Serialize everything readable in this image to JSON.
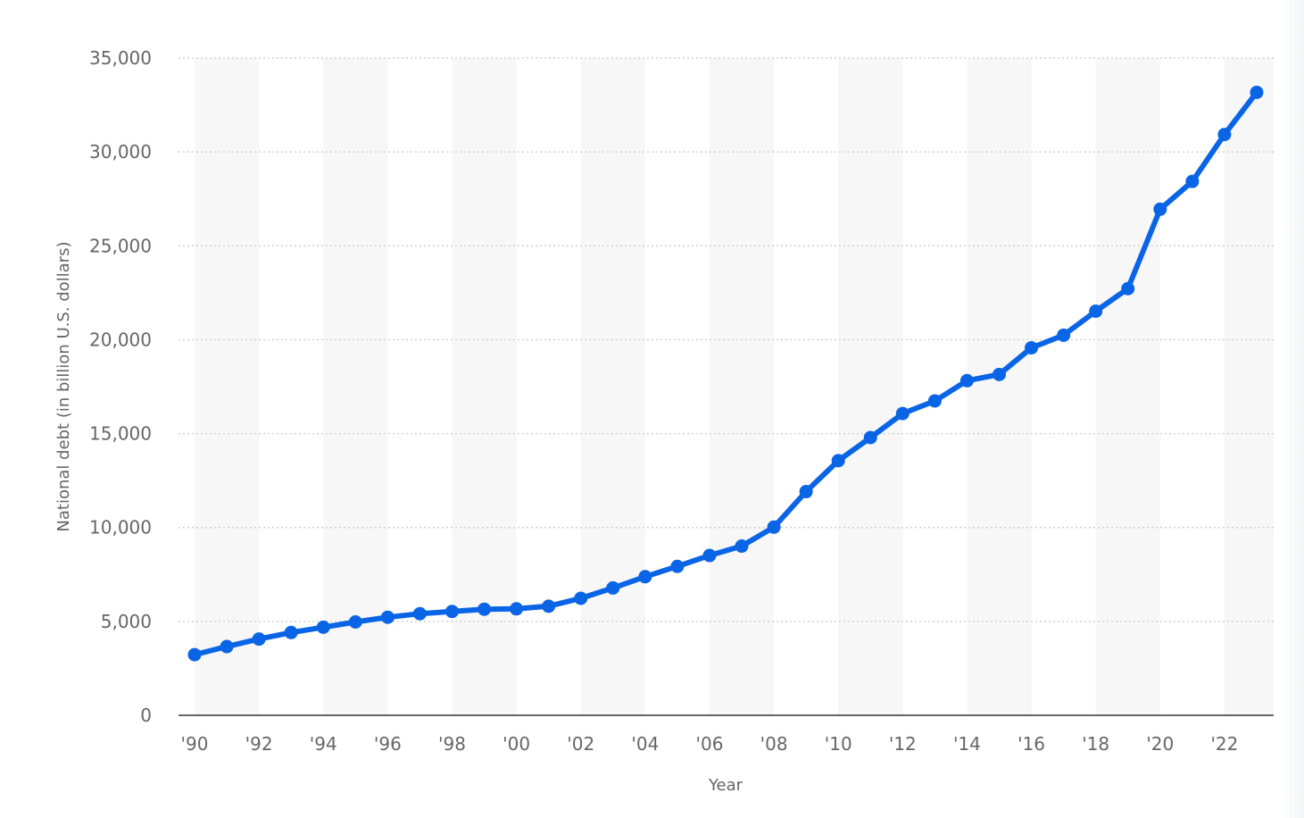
{
  "chart_data": {
    "type": "line",
    "title": "",
    "xlabel": "Year",
    "ylabel": "National debt (in billion U.S. dollars)",
    "x": [
      1990,
      1991,
      1992,
      1993,
      1994,
      1995,
      1996,
      1997,
      1998,
      1999,
      2000,
      2001,
      2002,
      2003,
      2004,
      2005,
      2006,
      2007,
      2008,
      2009,
      2010,
      2011,
      2012,
      2013,
      2014,
      2015,
      2016,
      2017,
      2018,
      2019,
      2020,
      2021,
      2022,
      2023
    ],
    "series": [
      {
        "name": "",
        "color": "#0a64e6",
        "values": [
          3230,
          3660,
          4060,
          4410,
          4690,
          4970,
          5220,
          5410,
          5530,
          5650,
          5670,
          5810,
          6230,
          6780,
          7380,
          7930,
          8510,
          9010,
          10020,
          11910,
          13560,
          14790,
          16070,
          16740,
          17820,
          18150,
          19570,
          20240,
          21520,
          22720,
          26950,
          28430,
          30930,
          33170
        ]
      }
    ],
    "xticks": [
      "'90",
      "'92",
      "'94",
      "'96",
      "'98",
      "'00",
      "'02",
      "'04",
      "'06",
      "'08",
      "'10",
      "'12",
      "'14",
      "'16",
      "'18",
      "'20",
      "'22"
    ],
    "yticks": [
      "0",
      "5,000",
      "10,000",
      "15,000",
      "20,000",
      "25,000",
      "30,000",
      "35,000"
    ],
    "ylim": [
      0,
      35000
    ],
    "grid": "horizontal dotted",
    "band_color": "#f7f7f7",
    "grid_color": "#c8c8c8",
    "axis_color": "#333333",
    "label_color": "#666666",
    "legend": "none"
  }
}
